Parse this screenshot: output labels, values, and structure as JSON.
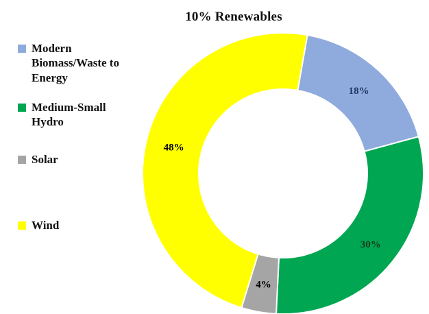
{
  "chart_data": {
    "type": "pie",
    "subtype": "donut",
    "title": "10% Renewables",
    "units": "%",
    "legend_position": "left",
    "background": "#FFFFFF",
    "start_angle_deg": 10,
    "clockwise": true,
    "inner_radius_ratio": 0.6,
    "slices": [
      {
        "label": "Modern Biomass/Waste to Energy",
        "value": 18,
        "pct_label": "18%",
        "color": "#8FAADC",
        "label_color": "#1F3864"
      },
      {
        "label": "Medium-Small Hydro",
        "value": 30,
        "pct_label": "30%",
        "color": "#00A651",
        "label_color": "#123B1C"
      },
      {
        "label": "Solar",
        "value": 4,
        "pct_label": "4%",
        "color": "#A5A5A5",
        "label_color": "#000000"
      },
      {
        "label": "Wind",
        "value": 48,
        "pct_label": "48%",
        "color": "#FFFF00",
        "label_color": "#000000"
      }
    ]
  }
}
